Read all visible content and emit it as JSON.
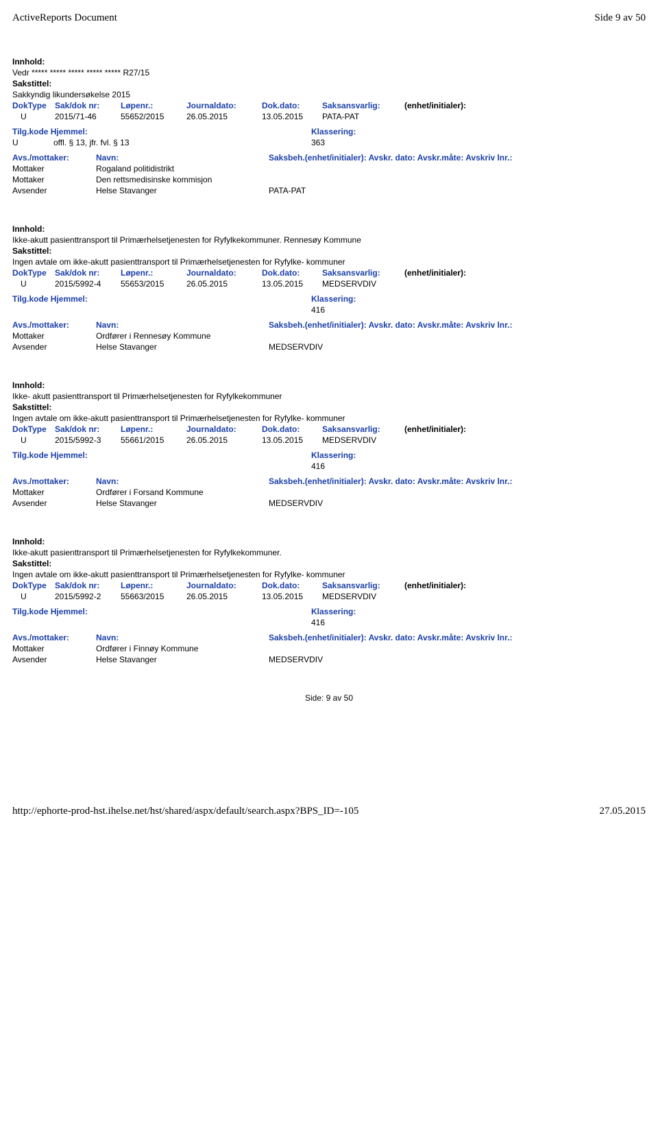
{
  "header": {
    "doc_title": "ActiveReports Document",
    "page_label": "Side 9 av 50"
  },
  "labels": {
    "innhold": "Innhold:",
    "sakstittel": "Sakstittel:",
    "doktype": "DokType",
    "sakdok": "Sak/dok nr:",
    "lopenr": "Løpenr.:",
    "journaldato": "Journaldato:",
    "dokdato": "Dok.dato:",
    "saksansvarlig": "Saksansvarlig:",
    "enhet": "(enhet/initialer):",
    "tilgkode": "Tilg.kode",
    "hjemmel": "Hjemmel:",
    "klassering": "Klassering:",
    "avsmottaker": "Avs./mottaker:",
    "navn": "Navn:",
    "saksbeh_full": "Saksbeh.(enhet/initialer): Avskr. dato:  Avskr.måte: Avskriv lnr.:"
  },
  "records": [
    {
      "innhold": "Vedr ***** ***** ***** ***** ***** R27/15",
      "sakstittel": "Sakkyndig likundersøkelse 2015",
      "doktype": "U",
      "sakdok": "2015/71-46",
      "lopenr": "55652/2015",
      "journaldato": "26.05.2015",
      "dokdato": "13.05.2015",
      "saksansvarlig": "PATA-PAT",
      "tilgkode": "U",
      "hjemmel": "offl. § 13, jfr. fvl. § 13",
      "klassering": "363",
      "parties": [
        {
          "role": "Mottaker",
          "name": "Rogaland politidistrikt",
          "center": ""
        },
        {
          "role": "Mottaker",
          "name": "Den rettsmedisinske kommisjon",
          "center": ""
        },
        {
          "role": "Avsender",
          "name": "Helse Stavanger",
          "center": "PATA-PAT"
        }
      ]
    },
    {
      "innhold": "Ikke-akutt pasienttransport til Primærhelsetjenesten for Ryfylkekommuner. Rennesøy Kommune",
      "sakstittel": "Ingen avtale om ikke-akutt pasienttransport til Primærhelsetjenesten for Ryfylke- kommuner",
      "doktype": "U",
      "sakdok": "2015/5992-4",
      "lopenr": "55653/2015",
      "journaldato": "26.05.2015",
      "dokdato": "13.05.2015",
      "saksansvarlig": "MEDSERVDIV",
      "tilgkode": "",
      "hjemmel": "",
      "klassering": "416",
      "parties": [
        {
          "role": "Mottaker",
          "name": "Ordfører i Rennesøy Kommune",
          "center": ""
        },
        {
          "role": "Avsender",
          "name": "Helse Stavanger",
          "center": "MEDSERVDIV"
        }
      ]
    },
    {
      "innhold": "Ikke- akutt pasienttransport til Primærhelsetjenesten for Ryfylkekommuner",
      "sakstittel": "Ingen avtale om ikke-akutt pasienttransport til Primærhelsetjenesten for Ryfylke- kommuner",
      "doktype": "U",
      "sakdok": "2015/5992-3",
      "lopenr": "55661/2015",
      "journaldato": "26.05.2015",
      "dokdato": "13.05.2015",
      "saksansvarlig": "MEDSERVDIV",
      "tilgkode": "",
      "hjemmel": "",
      "klassering": "416",
      "parties": [
        {
          "role": "Mottaker",
          "name": "Ordfører i Forsand Kommune",
          "center": ""
        },
        {
          "role": "Avsender",
          "name": "Helse Stavanger",
          "center": "MEDSERVDIV"
        }
      ]
    },
    {
      "innhold": "Ikke-akutt pasienttransport til Primærhelsetjenesten for Ryfylkekommuner.",
      "sakstittel": "Ingen avtale om ikke-akutt pasienttransport til Primærhelsetjenesten for Ryfylke- kommuner",
      "doktype": "U",
      "sakdok": "2015/5992-2",
      "lopenr": "55663/2015",
      "journaldato": "26.05.2015",
      "dokdato": "13.05.2015",
      "saksansvarlig": "MEDSERVDIV",
      "tilgkode": "",
      "hjemmel": "",
      "klassering": "416",
      "parties": [
        {
          "role": "Mottaker",
          "name": "Ordfører i Finnøy Kommune",
          "center": ""
        },
        {
          "role": "Avsender",
          "name": "Helse Stavanger",
          "center": "MEDSERVDIV"
        }
      ]
    }
  ],
  "footer": {
    "side_text": "Side:  9  av  50",
    "url": "http://ephorte-prod-hst.ihelse.net/hst/shared/aspx/default/search.aspx?BPS_ID=-105",
    "date": "27.05.2015"
  }
}
